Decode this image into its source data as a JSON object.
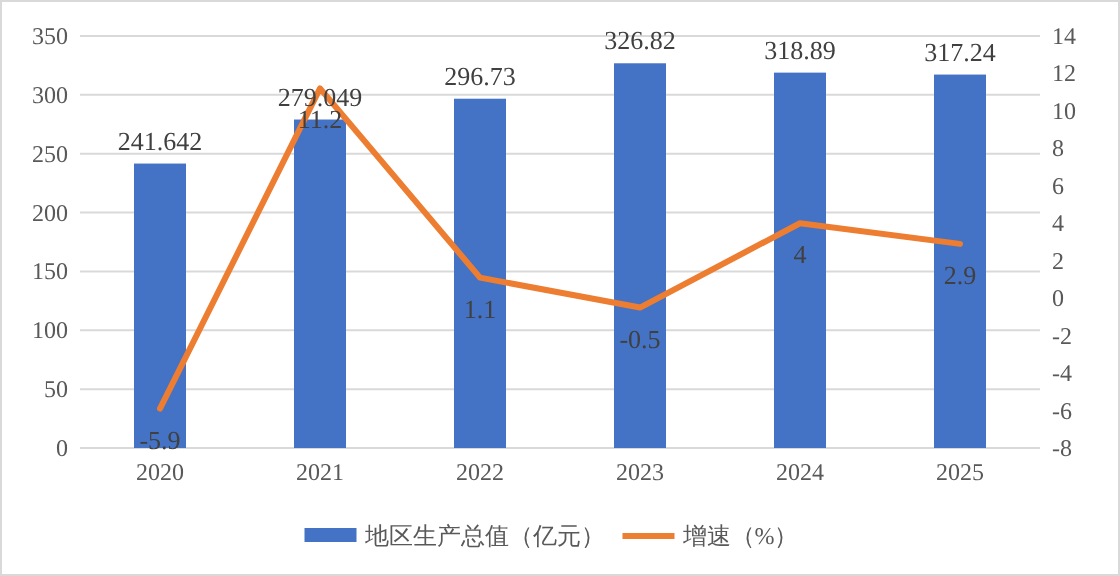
{
  "chart_data": {
    "type": "bar",
    "categories": [
      "2020",
      "2021",
      "2022",
      "2023",
      "2024",
      "2025"
    ],
    "series": [
      {
        "name": "地区生产总值（亿元）",
        "color": "#4472c4",
        "values": [
          241.642,
          279.049,
          296.73,
          326.82,
          318.89,
          317.24
        ]
      },
      {
        "name": "增速（%）",
        "type": "line",
        "axis": "y2",
        "color": "#ed7d31",
        "values": [
          -5.9,
          11.2,
          1.1,
          -0.5,
          4,
          2.9
        ]
      }
    ],
    "ylim": [
      0,
      350
    ],
    "yticks": [
      0,
      50,
      100,
      150,
      200,
      250,
      300,
      350
    ],
    "y2lim": [
      -8,
      14
    ],
    "y2ticks": [
      -8,
      -6,
      -4,
      -2,
      0,
      2,
      4,
      6,
      8,
      10,
      12,
      14
    ],
    "grid": "y",
    "legend": "bottom",
    "data_labels": true,
    "marker": "none"
  }
}
